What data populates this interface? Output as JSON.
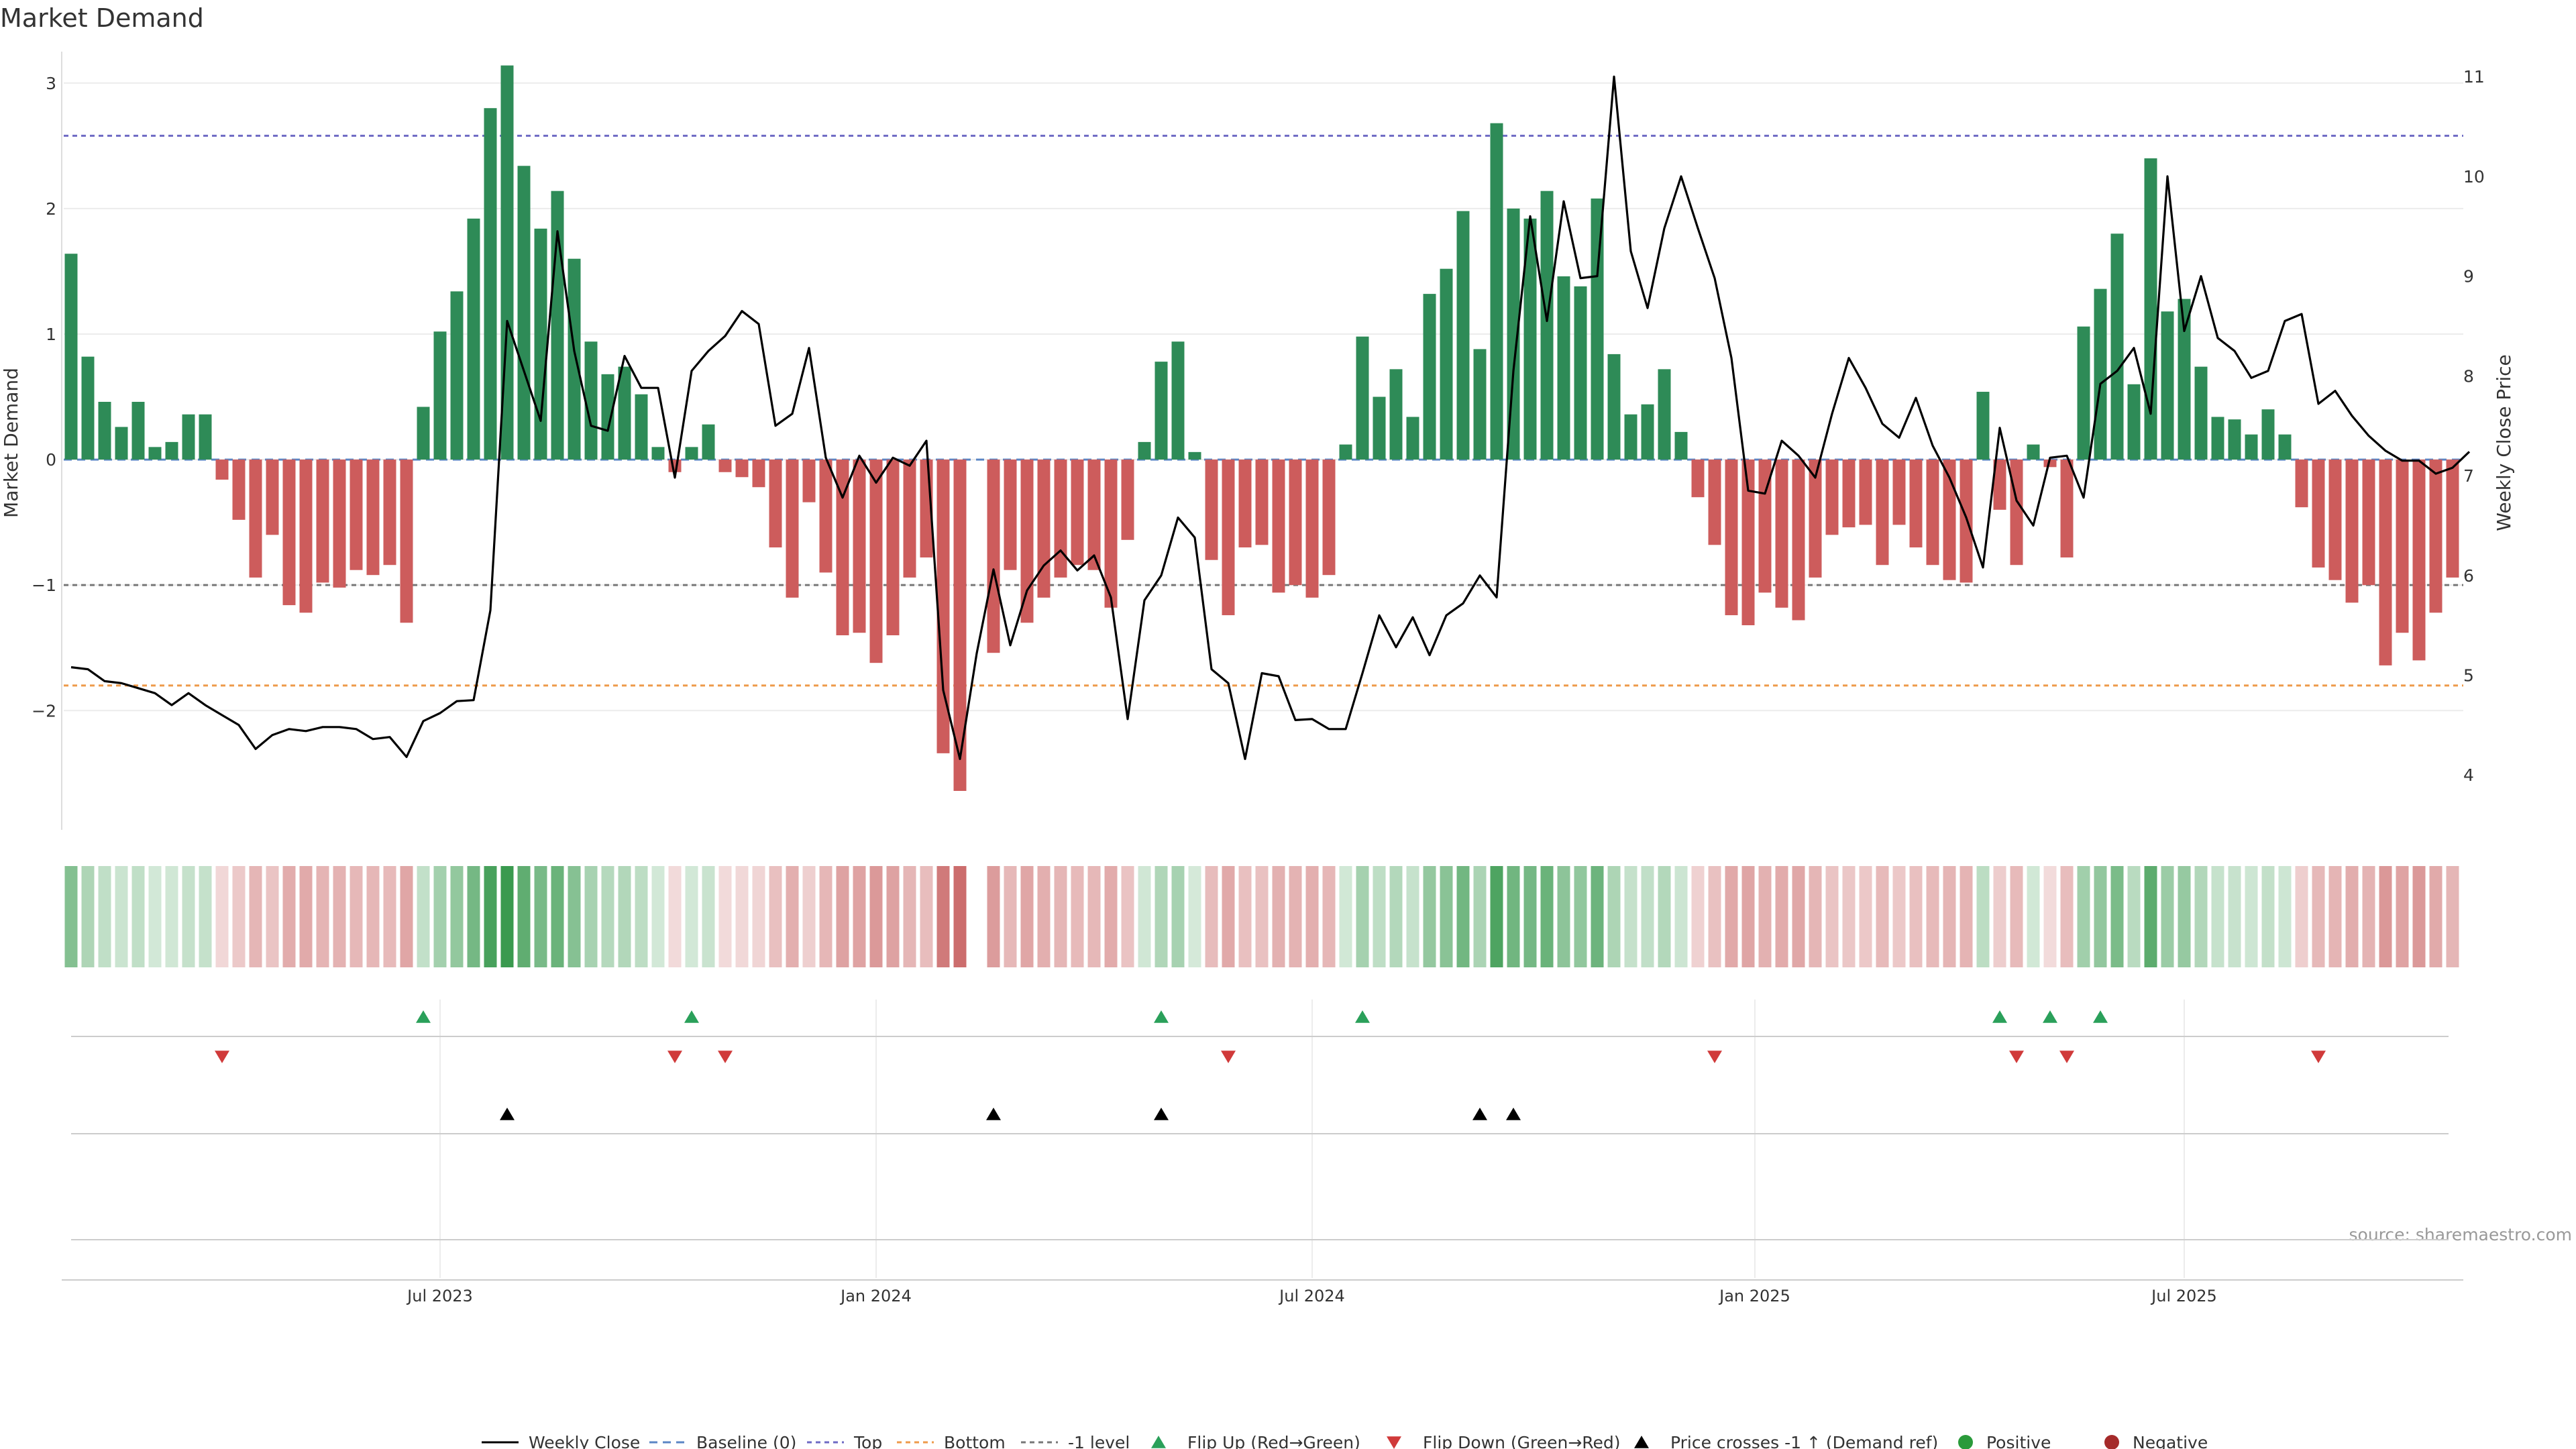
{
  "chart_data": {
    "type": "bar",
    "title": "Market Demand",
    "ylabel_left": "Market Demand",
    "ylabel_right": "Weekly Close Price",
    "source": "source: sharemaestro.com",
    "x_start": "2023-01-06",
    "week_days": 7,
    "ylim_left": [
      -2.95,
      3.25
    ],
    "yticks_left": [
      3,
      2,
      1,
      0,
      -1,
      -2
    ],
    "yticks_left_labels": [
      "3",
      "2",
      "1",
      "0",
      "−1",
      "−2"
    ],
    "ylim_right": [
      3.45,
      11.25
    ],
    "yticks_right": [
      11,
      10,
      9,
      8,
      7,
      6,
      5,
      4
    ],
    "x_ticks": [
      {
        "label": "Jul 2023",
        "week": 22
      },
      {
        "label": "Jan 2024",
        "week": 48
      },
      {
        "label": "Jul 2024",
        "week": 74
      },
      {
        "label": "Jan 2025",
        "week": 100.4
      },
      {
        "label": "Jul 2025",
        "week": 126
      }
    ],
    "reference_lines": [
      {
        "name": "Top",
        "value": 2.58,
        "color": "#6e6ac4"
      },
      {
        "name": "Bottom",
        "value": -1.8,
        "color": "#ee9a4a"
      },
      {
        "name": "-1 level",
        "value": -1.0,
        "color": "#777777"
      },
      {
        "name": "Baseline (0)",
        "value": 0,
        "color": "#5b86c5"
      }
    ],
    "demand": [
      1.64,
      0.82,
      0.46,
      0.26,
      0.46,
      0.1,
      0.14,
      0.36,
      0.36,
      -0.16,
      -0.48,
      -0.94,
      -0.6,
      -1.16,
      -1.22,
      -0.98,
      -1.02,
      -0.88,
      -0.92,
      -0.84,
      -1.3,
      0.42,
      1.02,
      1.34,
      1.92,
      2.8,
      3.14,
      2.34,
      1.84,
      2.14,
      1.6,
      0.94,
      0.68,
      0.74,
      0.52,
      0.1,
      -0.1,
      0.1,
      0.28,
      -0.1,
      -0.14,
      -0.22,
      -0.7,
      -1.1,
      -0.34,
      -0.9,
      -1.4,
      -1.38,
      -1.62,
      -1.4,
      -0.94,
      -0.78,
      -2.34,
      -2.64,
      0,
      -1.54,
      -0.88,
      -1.3,
      -1.1,
      -0.94,
      -0.84,
      -0.88,
      -1.18,
      -0.64,
      0.14,
      0.78,
      0.94,
      0.06,
      -0.8,
      -1.24,
      -0.7,
      -0.68,
      -1.06,
      -1.0,
      -1.1,
      -0.92,
      0.12,
      0.98,
      0.5,
      0.72,
      0.34,
      1.32,
      1.52,
      1.98,
      0.88,
      2.68,
      2.0,
      1.92,
      2.14,
      1.46,
      1.38,
      2.08,
      0.84,
      0.36,
      0.44,
      0.72,
      0.22,
      -0.3,
      -0.68,
      -1.24,
      -1.32,
      -1.06,
      -1.18,
      -1.28,
      -0.94,
      -0.6,
      -0.54,
      -0.52,
      -0.84,
      -0.52,
      -0.7,
      -0.84,
      -0.96,
      -0.98,
      0.54,
      -0.4,
      -0.84,
      0.12,
      -0.06,
      -0.78,
      1.06,
      1.36,
      1.8,
      0.6,
      2.4,
      1.18,
      1.28,
      0.74,
      0.34,
      0.32,
      0.2,
      0.4,
      0.2,
      -0.38,
      -0.86,
      -0.96,
      -1.14,
      -1.0,
      -1.64,
      -1.38,
      -1.6,
      -1.22,
      -0.94
    ],
    "weekly_close": [
      5.08,
      5.06,
      4.94,
      4.92,
      4.87,
      4.82,
      4.7,
      4.82,
      4.7,
      4.6,
      4.5,
      4.26,
      4.4,
      4.46,
      4.44,
      4.48,
      4.48,
      4.46,
      4.36,
      4.38,
      4.18,
      4.54,
      4.62,
      4.74,
      4.75,
      5.65,
      8.55,
      8.05,
      7.55,
      9.45,
      8.25,
      7.5,
      7.45,
      8.2,
      7.88,
      7.88,
      6.98,
      8.05,
      8.25,
      8.4,
      8.65,
      8.52,
      7.5,
      7.62,
      8.28,
      7.18,
      6.78,
      7.2,
      6.93,
      7.18,
      7.1,
      7.35,
      4.85,
      4.16,
      5.22,
      6.06,
      5.3,
      5.85,
      6.1,
      6.25,
      6.05,
      6.2,
      5.78,
      4.56,
      5.75,
      6.0,
      6.58,
      6.38,
      5.06,
      4.92,
      4.16,
      5.02,
      4.99,
      4.55,
      4.56,
      4.46,
      4.46,
      5.02,
      5.6,
      5.28,
      5.58,
      5.2,
      5.6,
      5.72,
      6.0,
      5.78,
      8.05,
      9.6,
      8.55,
      9.75,
      8.98,
      9.0,
      11.0,
      9.25,
      8.68,
      9.48,
      10.0,
      9.48,
      8.98,
      8.18,
      6.85,
      6.82,
      7.35,
      7.2,
      6.98,
      7.62,
      8.18,
      7.88,
      7.52,
      7.38,
      7.78,
      7.3,
      6.98,
      6.58,
      6.08,
      7.48,
      6.75,
      6.5,
      7.18,
      7.2,
      6.78,
      7.92,
      8.05,
      8.28,
      7.62,
      10.0,
      8.45,
      9.0,
      8.38,
      8.25,
      7.98,
      8.05,
      8.55,
      8.62,
      7.72,
      7.85,
      7.6,
      7.4,
      7.25,
      7.15,
      7.15,
      7.02,
      7.08,
      7.24
    ],
    "flip_up_weeks": [
      21,
      37,
      65,
      77,
      115,
      118,
      121
    ],
    "flip_down_weeks": [
      9,
      36,
      39,
      69,
      98,
      116,
      119,
      134
    ],
    "price_cross_weeks": [
      26,
      55,
      65,
      84,
      86
    ],
    "legend": [
      {
        "key": "weekly-close",
        "label": "Weekly Close"
      },
      {
        "key": "baseline",
        "label": "Baseline (0)"
      },
      {
        "key": "top",
        "label": "Top"
      },
      {
        "key": "bottom",
        "label": "Bottom"
      },
      {
        "key": "minus-one",
        "label": "-1 level"
      },
      {
        "key": "flip-up",
        "label": "Flip Up (Red→Green)"
      },
      {
        "key": "flip-down",
        "label": "Flip Down (Green→Red)"
      },
      {
        "key": "price-cross",
        "label": "Price crosses -1 ↑ (Demand ref)"
      },
      {
        "key": "positive",
        "label": "Positive"
      },
      {
        "key": "negative",
        "label": "Negative"
      }
    ],
    "colors": {
      "positive": "#2e8b57",
      "negative": "#cd5c5c",
      "flip_up": "#2aa05a",
      "flip_down": "#d03a3a",
      "price_cross": "#000000",
      "positive_dot": "#2a9a3a",
      "negative_dot": "#a52a2a",
      "line": "#000000"
    }
  }
}
